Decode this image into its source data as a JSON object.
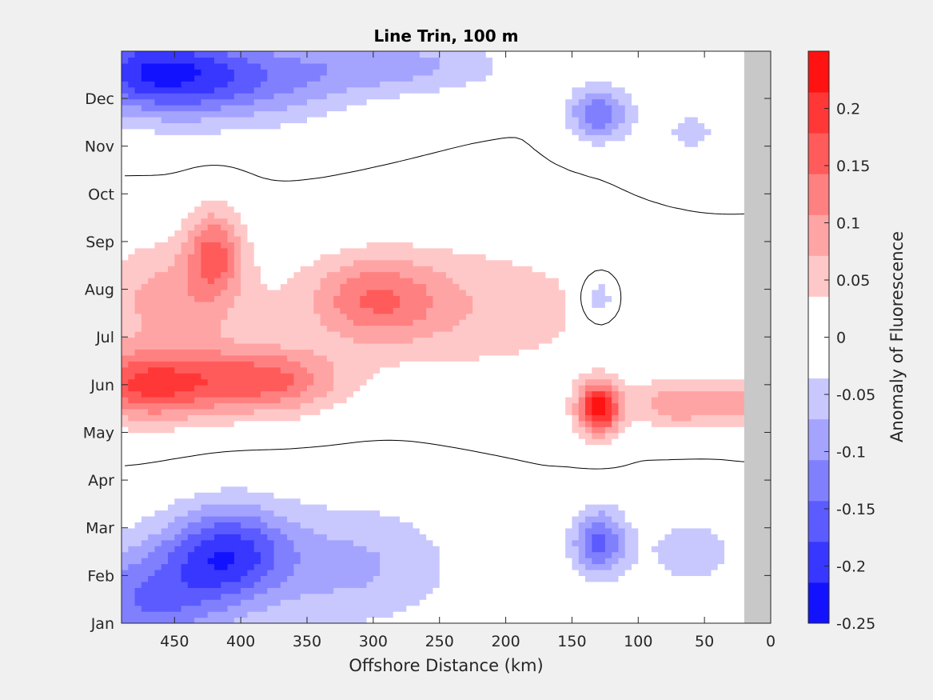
{
  "chart_data": {
    "type": "heatmap",
    "title": "Line Trin, 100 m",
    "xlabel": "Offshore Distance (km)",
    "ylabel": "",
    "colorbar_label": "Anomaly of Fluorescence",
    "x_ticks": [
      450,
      400,
      350,
      300,
      250,
      200,
      150,
      100,
      50,
      0
    ],
    "xlim": [
      490,
      0
    ],
    "y_ticks": [
      "Jan",
      "Feb",
      "Mar",
      "Apr",
      "May",
      "Jun",
      "Jul",
      "Aug",
      "Sep",
      "Oct",
      "Nov",
      "Dec"
    ],
    "ylim": [
      1,
      12.99
    ],
    "colorbar_ticks": [
      -0.25,
      -0.2,
      -0.15,
      -0.1,
      -0.05,
      0,
      0.05,
      0.1,
      0.15,
      0.2
    ],
    "clim": [
      -0.25,
      0.25
    ],
    "no_data_x_range": [
      20,
      0
    ],
    "contour_level": 0,
    "colors": {
      "positive": "#ff0000",
      "negative": "#0000ff",
      "zero": "#ffffff",
      "no_data": "#c8c8c8",
      "contour": "#000000"
    },
    "features": [
      {
        "x": 470,
        "y": 12.6,
        "value": -0.17,
        "sx": 60,
        "sy": 0.9
      },
      {
        "x": 400,
        "y": 12.4,
        "value": -0.12,
        "sx": 80,
        "sy": 0.9
      },
      {
        "x": 280,
        "y": 12.7,
        "value": -0.08,
        "sx": 80,
        "sy": 0.6
      },
      {
        "x": 130,
        "y": 11.7,
        "value": -0.14,
        "sx": 22,
        "sy": 0.55
      },
      {
        "x": 60,
        "y": 11.3,
        "value": -0.04,
        "sx": 40,
        "sy": 0.8
      },
      {
        "x": 470,
        "y": 6.0,
        "value": 0.18,
        "sx": 55,
        "sy": 0.75
      },
      {
        "x": 380,
        "y": 6.1,
        "value": 0.15,
        "sx": 55,
        "sy": 0.7
      },
      {
        "x": 420,
        "y": 8.8,
        "value": 0.13,
        "sx": 20,
        "sy": 0.9
      },
      {
        "x": 450,
        "y": 7.8,
        "value": 0.09,
        "sx": 60,
        "sy": 1.2
      },
      {
        "x": 300,
        "y": 7.8,
        "value": 0.12,
        "sx": 50,
        "sy": 0.9
      },
      {
        "x": 220,
        "y": 7.6,
        "value": 0.06,
        "sx": 100,
        "sy": 1.4
      },
      {
        "x": 130,
        "y": 5.5,
        "value": 0.24,
        "sx": 16,
        "sy": 0.55
      },
      {
        "x": 70,
        "y": 5.6,
        "value": 0.1,
        "sx": 35,
        "sy": 0.5
      },
      {
        "x": 20,
        "y": 5.6,
        "value": 0.08,
        "sx": 25,
        "sy": 0.5
      },
      {
        "x": 130,
        "y": 7.8,
        "value": -0.08,
        "sx": 14,
        "sy": 0.5
      },
      {
        "x": 410,
        "y": 2.5,
        "value": -0.17,
        "sx": 45,
        "sy": 1.0
      },
      {
        "x": 470,
        "y": 1.5,
        "value": -0.14,
        "sx": 60,
        "sy": 1.2
      },
      {
        "x": 320,
        "y": 2.2,
        "value": -0.08,
        "sx": 80,
        "sy": 1.3
      },
      {
        "x": 130,
        "y": 2.7,
        "value": -0.15,
        "sx": 20,
        "sy": 0.7
      },
      {
        "x": 60,
        "y": 2.5,
        "value": -0.05,
        "sx": 45,
        "sy": 0.9
      }
    ]
  }
}
